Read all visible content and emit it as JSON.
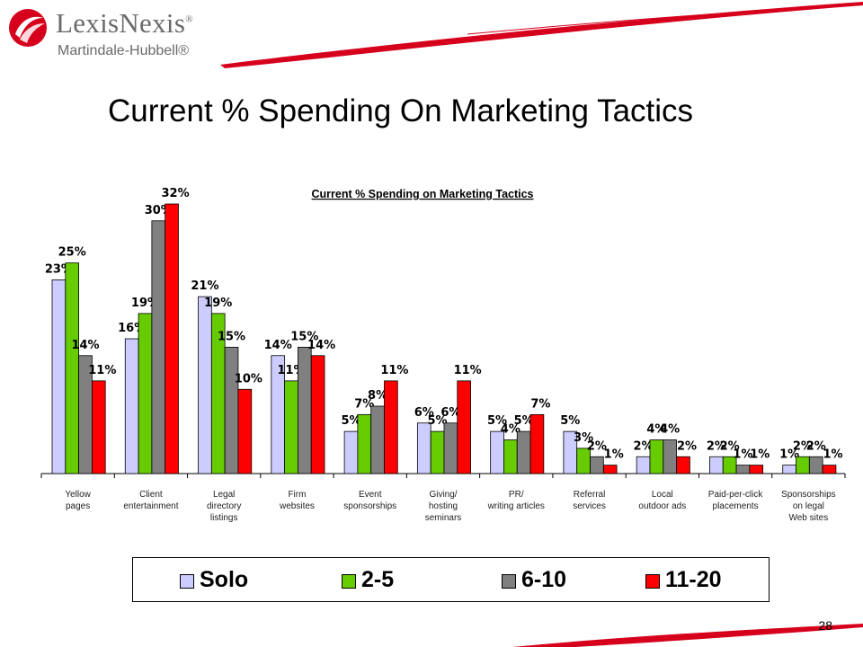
{
  "header": {
    "brand": "LexisNexis",
    "brand_mark": "®",
    "subbrand": "Martindale-Hubbell®"
  },
  "page": {
    "title": "Current % Spending On Marketing Tactics",
    "number": "28"
  },
  "colors": {
    "brand_red": "#d6001c",
    "solo": "#ccccff",
    "two_five": "#66cc00",
    "six_ten": "#808080",
    "eleven_twenty": "#ff0000"
  },
  "chart_data": {
    "type": "bar",
    "title": "Current % Spending on Marketing Tactics",
    "categories": [
      [
        "Yellow",
        "pages"
      ],
      [
        "Client",
        "entertainment"
      ],
      [
        "Legal",
        "directory",
        "listings"
      ],
      [
        "Firm",
        "websites"
      ],
      [
        "Event",
        "sponsorships"
      ],
      [
        "Giving/",
        "hosting",
        "seminars"
      ],
      [
        "PR/",
        "writing articles"
      ],
      [
        "Referral",
        "services"
      ],
      [
        "Local",
        "outdoor ads"
      ],
      [
        "Paid-per-click",
        "placements"
      ],
      [
        "Sponsorships",
        "on legal",
        "Web sites"
      ]
    ],
    "series": [
      {
        "name": "Solo",
        "color": "#ccccff",
        "values": [
          23,
          16,
          21,
          14,
          5,
          6,
          5,
          5,
          2,
          2,
          1
        ]
      },
      {
        "name": "2-5",
        "color": "#66cc00",
        "values": [
          25,
          19,
          19,
          11,
          7,
          5,
          4,
          3,
          4,
          2,
          2
        ]
      },
      {
        "name": "6-10",
        "color": "#808080",
        "values": [
          14,
          30,
          15,
          15,
          8,
          6,
          5,
          2,
          4,
          1,
          2
        ]
      },
      {
        "name": "11-20",
        "color": "#ff0000",
        "values": [
          11,
          32,
          10,
          14,
          11,
          11,
          7,
          1,
          2,
          1,
          1
        ]
      }
    ],
    "value_suffix": "%",
    "ylim": [
      0,
      32
    ],
    "grid": false,
    "legend_position": "bottom"
  }
}
